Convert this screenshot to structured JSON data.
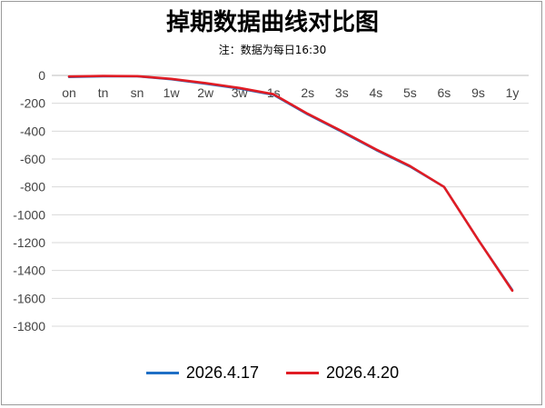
{
  "chart_data": {
    "type": "line",
    "title": "掉期数据曲线对比图",
    "subtitle": "注：数据为每日16:30",
    "categories": [
      "on",
      "tn",
      "sn",
      "1w",
      "2w",
      "3w",
      "1s",
      "2s",
      "3s",
      "4s",
      "5s",
      "6s",
      "9s",
      "1y"
    ],
    "ylim": [
      -1800,
      0
    ],
    "yticks": [
      0,
      -200,
      -400,
      -600,
      -800,
      -1000,
      -1200,
      -1400,
      -1600,
      -1800
    ],
    "grid": true,
    "legend_position": "bottom",
    "series": [
      {
        "name": "2026.4.17",
        "color": "#1f6fc5",
        "values": [
          -12,
          -7,
          -7,
          -28,
          -60,
          -95,
          -140,
          -280,
          -405,
          -535,
          -655,
          -800,
          -1180,
          -1540
        ]
      },
      {
        "name": "2026.4.20",
        "color": "#e01c24",
        "values": [
          -8,
          -4,
          -5,
          -25,
          -55,
          -90,
          -135,
          -275,
          -400,
          -530,
          -650,
          -800,
          -1180,
          -1545
        ]
      }
    ]
  }
}
